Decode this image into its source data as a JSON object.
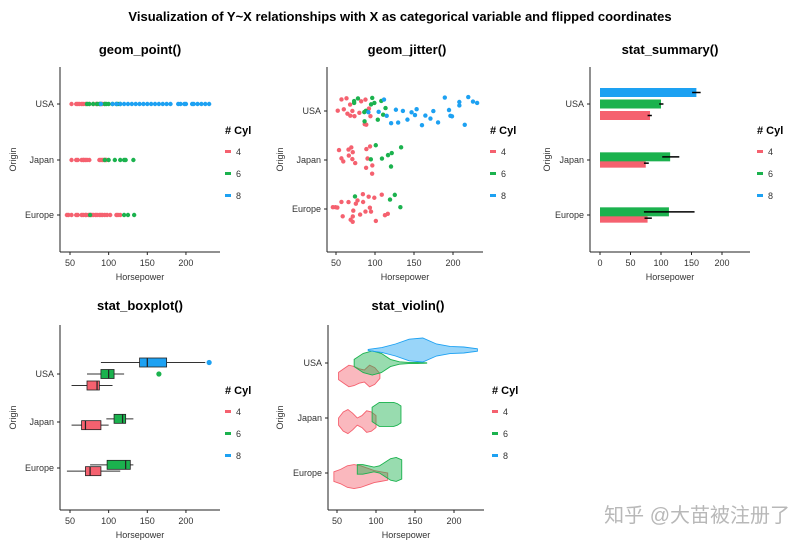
{
  "title": "Visualization of Y~X relationships with X as categorical variable and flipped coordinates",
  "watermark": "知乎 @大苗被注册了",
  "colors": {
    "4": "#F5616F",
    "6": "#1BB24E",
    "8": "#1DA1F2"
  },
  "chart_data": [
    {
      "type": "scatter",
      "title": "geom_point()",
      "xlabel": "Horsepower",
      "ylabel": "Origin",
      "categories": [
        "USA",
        "Japan",
        "Europe"
      ],
      "xticks": [
        "50",
        "100",
        "150",
        "200"
      ],
      "legend": {
        "title": "# Cyl",
        "entries": [
          "4",
          "6",
          "8"
        ],
        "position": "right"
      },
      "series": [
        {
          "name": "4",
          "points": {
            "USA": [
              52,
              58,
              60,
              62,
              65,
              67,
              70,
              72,
              75,
              80,
              84,
              85,
              88,
              90,
              92,
              95
            ],
            "Japan": [
              52,
              58,
              60,
              65,
              67,
              68,
              70,
              72,
              75,
              88,
              90,
              92,
              94,
              96,
              97
            ],
            "Europe": [
              46,
              48,
              52,
              58,
              60,
              65,
              67,
              70,
              71,
              74,
              76,
              78,
              80,
              83,
              85,
              88,
              90,
              92,
              95,
              98,
              102,
              110,
              112,
              115
            ]
          }
        },
        {
          "name": "6",
          "points": {
            "USA": [
              72,
              75,
              80,
              85,
              88,
              90,
              95,
              97,
              100,
              105,
              110,
              112,
              115
            ],
            "Japan": [
              95,
              100,
              108,
              115,
              120,
              122,
              132
            ],
            "Europe": [
              76,
              120,
              125,
              133
            ]
          }
        },
        {
          "name": "8",
          "points": {
            "USA": [
              90,
              105,
              110,
              115,
              120,
              125,
              130,
              135,
              140,
              145,
              150,
              155,
              160,
              165,
              170,
              175,
              180,
              190,
              193,
              198,
              200,
              208,
              210,
              215,
              220,
              225,
              230
            ],
            "Japan": [],
            "Europe": []
          }
        }
      ]
    },
    {
      "type": "scatter",
      "title": "geom_jitter()",
      "xlabel": "Horsepower",
      "ylabel": "Origin",
      "categories": [
        "USA",
        "Japan",
        "Europe"
      ],
      "xticks": [
        "50",
        "100",
        "150",
        "200"
      ],
      "legend": {
        "title": "# Cyl",
        "entries": [
          "4",
          "6",
          "8"
        ],
        "position": "right"
      },
      "series": [
        {
          "name": "4",
          "points": {
            "USA": [
              52,
              58,
              60,
              62,
              65,
              67,
              70,
              72,
              75,
              80,
              84,
              85,
              88,
              90,
              92,
              95
            ],
            "Japan": [
              52,
              58,
              60,
              65,
              67,
              68,
              70,
              72,
              75,
              88,
              90,
              92,
              94,
              96,
              97
            ],
            "Europe": [
              46,
              48,
              52,
              58,
              60,
              65,
              67,
              70,
              71,
              74,
              76,
              78,
              80,
              83,
              85,
              88,
              90,
              92,
              95,
              98,
              102,
              110,
              112,
              115
            ]
          }
        },
        {
          "name": "6",
          "points": {
            "USA": [
              72,
              75,
              80,
              85,
              88,
              90,
              95,
              97,
              100,
              105,
              110,
              112,
              115
            ],
            "Japan": [
              95,
              100,
              108,
              115,
              120,
              122,
              132
            ],
            "Europe": [
              76,
              120,
              125,
              133
            ]
          }
        },
        {
          "name": "8",
          "points": {
            "USA": [
              90,
              105,
              110,
              115,
              120,
              125,
              130,
              135,
              140,
              145,
              150,
              155,
              160,
              165,
              170,
              175,
              180,
              190,
              193,
              198,
              200,
              208,
              210,
              215,
              220,
              225,
              230
            ],
            "Japan": [],
            "Europe": []
          }
        }
      ]
    },
    {
      "type": "bar",
      "title": "stat_summary()",
      "xlabel": "Horsepower",
      "ylabel": "Origin",
      "categories": [
        "USA",
        "Japan",
        "Europe"
      ],
      "xticks": [
        "0",
        "50",
        "100",
        "150",
        "200"
      ],
      "legend": {
        "title": "# Cyl",
        "entries": [
          "4",
          "6",
          "8"
        ],
        "position": "right"
      },
      "series": [
        {
          "name": "4",
          "values": {
            "USA": {
              "mean": 82,
              "low": 78,
              "high": 85
            },
            "Japan": {
              "mean": 75,
              "low": 72,
              "high": 80
            },
            "Europe": {
              "mean": 78,
              "low": 73,
              "high": 85
            }
          }
        },
        {
          "name": "6",
          "values": {
            "USA": {
              "mean": 100,
              "low": 97,
              "high": 104
            },
            "Japan": {
              "mean": 115,
              "low": 102,
              "high": 130
            },
            "Europe": {
              "mean": 113,
              "low": 72,
              "high": 155
            }
          }
        },
        {
          "name": "8",
          "values": {
            "USA": {
              "mean": 158,
              "low": 151,
              "high": 165
            }
          }
        }
      ]
    },
    {
      "type": "boxplot",
      "title": "stat_boxplot()",
      "xlabel": "Horsepower",
      "ylabel": "Origin",
      "categories": [
        "USA",
        "Japan",
        "Europe"
      ],
      "xticks": [
        "50",
        "100",
        "150",
        "200"
      ],
      "legend": {
        "title": "# Cyl",
        "entries": [
          "4",
          "6",
          "8"
        ],
        "position": "right"
      },
      "series": [
        {
          "name": "4",
          "values": {
            "USA": {
              "min": 52,
              "q1": 72,
              "median": 85,
              "q3": 88,
              "max": 105,
              "outliers": []
            },
            "Japan": {
              "min": 52,
              "q1": 65,
              "median": 70,
              "q3": 90,
              "max": 100,
              "outliers": []
            },
            "Europe": {
              "min": 46,
              "q1": 70,
              "median": 76,
              "q3": 90,
              "max": 115,
              "outliers": []
            }
          }
        },
        {
          "name": "6",
          "values": {
            "USA": {
              "min": 72,
              "q1": 90,
              "median": 100,
              "q3": 107,
              "max": 120,
              "outliers": [
                165
              ]
            },
            "Japan": {
              "min": 97,
              "q1": 107,
              "median": 118,
              "q3": 122,
              "max": 132,
              "outliers": []
            },
            "Europe": {
              "min": 76,
              "q1": 98,
              "median": 122,
              "q3": 128,
              "max": 132,
              "outliers": []
            }
          }
        },
        {
          "name": "8",
          "values": {
            "USA": {
              "min": 90,
              "q1": 140,
              "median": 150,
              "q3": 175,
              "max": 225,
              "outliers": [
                230
              ]
            }
          }
        }
      ]
    },
    {
      "type": "violin",
      "title": "stat_violin()",
      "xlabel": "Horsepower",
      "ylabel": "Origin",
      "categories": [
        "USA",
        "Japan",
        "Europe"
      ],
      "xticks": [
        "50",
        "100",
        "150",
        "200"
      ],
      "legend": {
        "title": "# Cyl",
        "entries": [
          "4",
          "6",
          "8"
        ],
        "position": "right"
      },
      "series": [
        {
          "name": "4",
          "values": {
            "USA": {
              "range": [
                52,
                105
              ],
              "density": [
                0.3,
                0.6,
                0.9,
                0.8,
                0.6,
                0.5,
                0.9,
                0.7,
                0.2
              ]
            },
            "Japan": {
              "range": [
                52,
                100
              ],
              "density": [
                0.3,
                0.8,
                1,
                0.7,
                0.3,
                0.5,
                0.9,
                0.8,
                0.5
              ]
            },
            "Europe": {
              "range": [
                46,
                115
              ],
              "density": [
                0.4,
                0.6,
                0.9,
                1,
                0.9,
                0.7,
                0.5,
                0.4,
                0.3
              ]
            }
          }
        },
        {
          "name": "6",
          "values": {
            "USA": {
              "range": [
                72,
                165
              ],
              "density": [
                0.3,
                0.8,
                1,
                0.8,
                0.3,
                0.1,
                0.05,
                0.05,
                0.02
              ]
            },
            "Japan": {
              "range": [
                95,
                132
              ],
              "density": [
                0.6,
                0.8,
                1,
                1,
                1,
                1,
                1,
                0.9,
                0.7
              ]
            },
            "Europe": {
              "range": [
                76,
                133
              ],
              "density": [
                0.4,
                0.4,
                0.3,
                0.2,
                0.3,
                0.6,
                0.9,
                1,
                0.8
              ]
            }
          }
        },
        {
          "name": "8",
          "values": {
            "USA": {
              "range": [
                90,
                230
              ],
              "density": [
                0.05,
                0.2,
                0.5,
                0.9,
                1,
                0.5,
                0.3,
                0.25,
                0.1
              ]
            }
          }
        }
      ]
    }
  ]
}
